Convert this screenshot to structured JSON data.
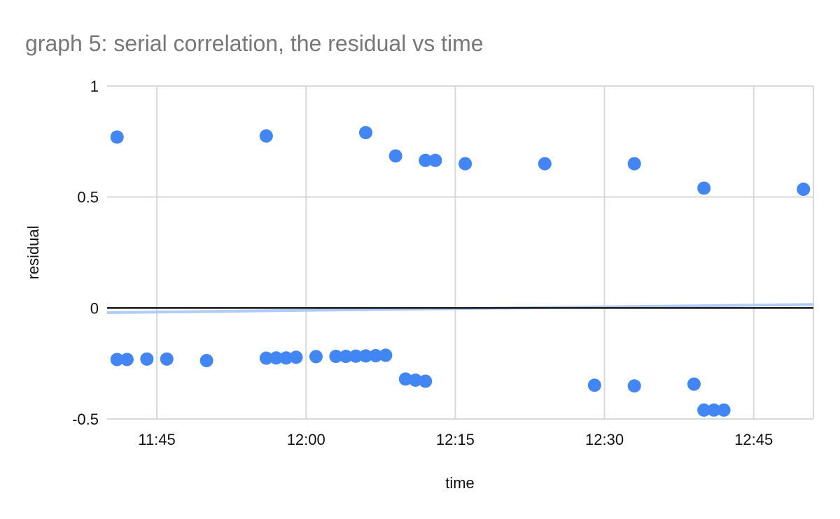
{
  "page": {
    "background": "#ffffff"
  },
  "chart_data": {
    "type": "scatter",
    "title": "graph 5: serial correlation, the residual vs time",
    "xlabel": "time",
    "ylabel": "residual",
    "x_tick_labels": [
      "11:45",
      "12:00",
      "12:15",
      "12:30",
      "12:45"
    ],
    "y_tick_labels": [
      "1",
      "0.5",
      "0",
      "-0.5"
    ],
    "y_tick_values": [
      1,
      0.5,
      0,
      -0.5
    ],
    "xlim": [
      "11:40",
      "12:51"
    ],
    "ylim": [
      -0.5,
      1
    ],
    "grid": true,
    "grid_color": "#d9d9d9",
    "axis_text_color": "#111111",
    "title_color": "#777777",
    "zero_line": {
      "value": 0,
      "color": "#212121"
    },
    "trendline": {
      "color": "#aecbfa",
      "start": {
        "time": "11:40",
        "residual": -0.021
      },
      "end": {
        "time": "12:51",
        "residual": 0.016
      }
    },
    "series": [
      {
        "name": "residual",
        "color": "#4285f4",
        "marker": "circle",
        "points": [
          {
            "time": "11:41",
            "residual": 0.77
          },
          {
            "time": "11:56",
            "residual": 0.775
          },
          {
            "time": "12:06",
            "residual": 0.79
          },
          {
            "time": "12:09",
            "residual": 0.685
          },
          {
            "time": "12:12",
            "residual": 0.665
          },
          {
            "time": "12:13",
            "residual": 0.665
          },
          {
            "time": "12:16",
            "residual": 0.65
          },
          {
            "time": "12:24",
            "residual": 0.65
          },
          {
            "time": "12:33",
            "residual": 0.65
          },
          {
            "time": "12:40",
            "residual": 0.54
          },
          {
            "time": "12:50",
            "residual": 0.535
          },
          {
            "time": "11:41",
            "residual": -0.232
          },
          {
            "time": "11:42",
            "residual": -0.232
          },
          {
            "time": "11:44",
            "residual": -0.23
          },
          {
            "time": "11:46",
            "residual": -0.23
          },
          {
            "time": "11:50",
            "residual": -0.237
          },
          {
            "time": "11:56",
            "residual": -0.226
          },
          {
            "time": "11:57",
            "residual": -0.225
          },
          {
            "time": "11:58",
            "residual": -0.225
          },
          {
            "time": "11:59",
            "residual": -0.222
          },
          {
            "time": "12:01",
            "residual": -0.219
          },
          {
            "time": "12:03",
            "residual": -0.218
          },
          {
            "time": "12:04",
            "residual": -0.218
          },
          {
            "time": "12:05",
            "residual": -0.217
          },
          {
            "time": "12:06",
            "residual": -0.216
          },
          {
            "time": "12:07",
            "residual": -0.215
          },
          {
            "time": "12:08",
            "residual": -0.213
          },
          {
            "time": "12:10",
            "residual": -0.32
          },
          {
            "time": "12:11",
            "residual": -0.325
          },
          {
            "time": "12:12",
            "residual": -0.33
          },
          {
            "time": "12:29",
            "residual": -0.348
          },
          {
            "time": "12:33",
            "residual": -0.351
          },
          {
            "time": "12:39",
            "residual": -0.343
          },
          {
            "time": "12:40",
            "residual": -0.46
          },
          {
            "time": "12:41",
            "residual": -0.46
          },
          {
            "time": "12:42",
            "residual": -0.46
          }
        ]
      }
    ]
  }
}
